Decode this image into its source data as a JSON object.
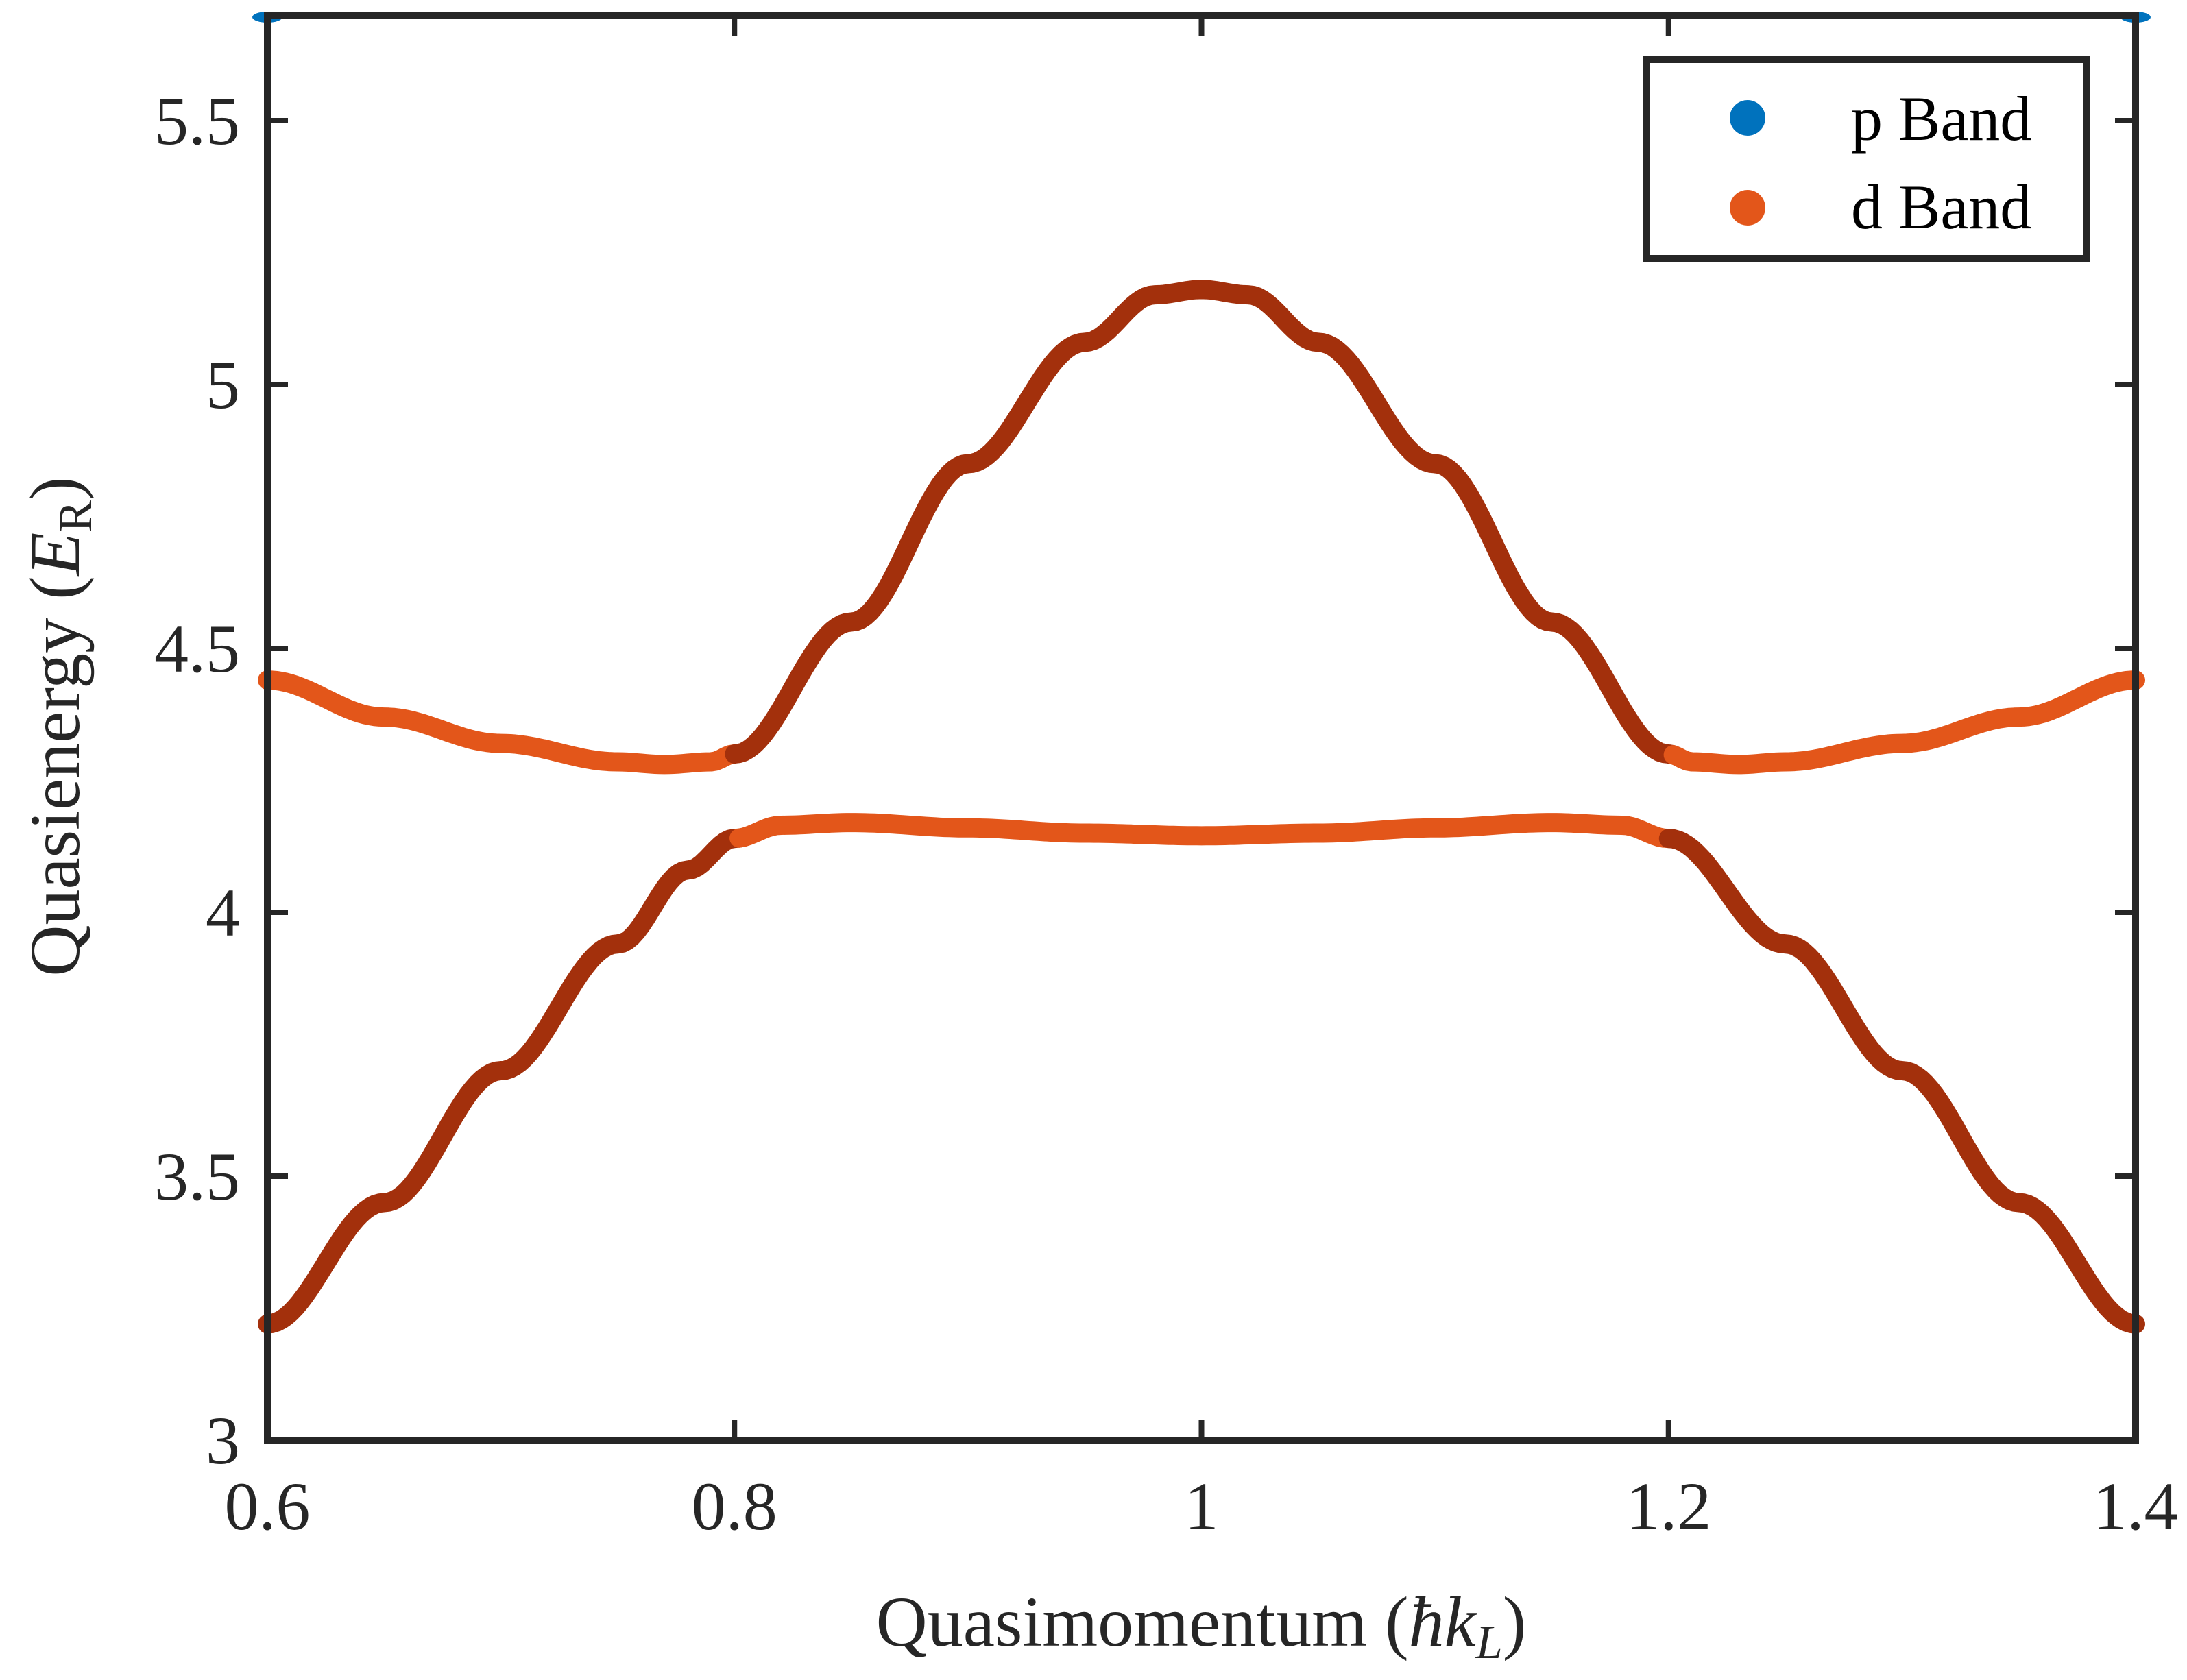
{
  "chart_data": {
    "type": "scatter",
    "xlabel": {
      "text": "Quasimomentum (",
      "symbol": "ħk",
      "sub": "L",
      "close": ")"
    },
    "ylabel": {
      "text": "Quasienergy (",
      "symbol": "E",
      "sub": "R",
      "close": ")"
    },
    "xlim": [
      0.6,
      1.4
    ],
    "ylim": [
      3.0,
      5.7
    ],
    "xticks": [
      0.6,
      0.8,
      1.0,
      1.2,
      1.4
    ],
    "xtick_labels": [
      "0.6",
      "0.8",
      "1",
      "1.2",
      "1.4"
    ],
    "yticks": [
      3.0,
      3.5,
      4.0,
      4.5,
      5.0,
      5.5
    ],
    "ytick_labels": [
      "3",
      "3.5",
      "4",
      "4.5",
      "5",
      "5.5"
    ],
    "grid": false,
    "legend": {
      "placement": "top-right",
      "entries": [
        {
          "label": "p Band",
          "color": "#0072BD"
        },
        {
          "label": "d Band",
          "color": "#D95319"
        }
      ]
    },
    "colors": {
      "p_band": "#0072BD",
      "d_band": "#E3561A",
      "d_band_steep": "#A3300C",
      "axis": "#262626"
    },
    "series": [
      {
        "name": "d Band",
        "band": "upper",
        "x": [
          0.6,
          0.65,
          0.7,
          0.75,
          0.77,
          0.79,
          0.8,
          0.85,
          0.9,
          0.95,
          0.98,
          1.0,
          1.02,
          1.05,
          1.1,
          1.15,
          1.2,
          1.21,
          1.23,
          1.25,
          1.3,
          1.35,
          1.4
        ],
        "y": [
          4.44,
          4.37,
          4.32,
          4.285,
          4.28,
          4.285,
          4.3,
          4.55,
          4.85,
          5.08,
          5.17,
          5.18,
          5.17,
          5.08,
          4.85,
          4.55,
          4.3,
          4.285,
          4.28,
          4.285,
          4.32,
          4.37,
          4.44
        ]
      },
      {
        "name": "d Band",
        "band": "lower",
        "x": [
          0.6,
          0.65,
          0.7,
          0.75,
          0.78,
          0.8,
          0.82,
          0.85,
          0.9,
          0.95,
          1.0,
          1.05,
          1.1,
          1.15,
          1.18,
          1.2,
          1.25,
          1.3,
          1.35,
          1.4
        ],
        "y": [
          3.22,
          3.45,
          3.7,
          3.94,
          4.08,
          4.14,
          4.165,
          4.17,
          4.16,
          4.15,
          4.145,
          4.15,
          4.16,
          4.17,
          4.165,
          4.14,
          3.94,
          3.7,
          3.45,
          3.22
        ]
      },
      {
        "name": "p Band",
        "band": "top-clipped",
        "x": [
          0.6,
          1.4
        ],
        "y": [
          5.7,
          5.7
        ]
      }
    ]
  }
}
